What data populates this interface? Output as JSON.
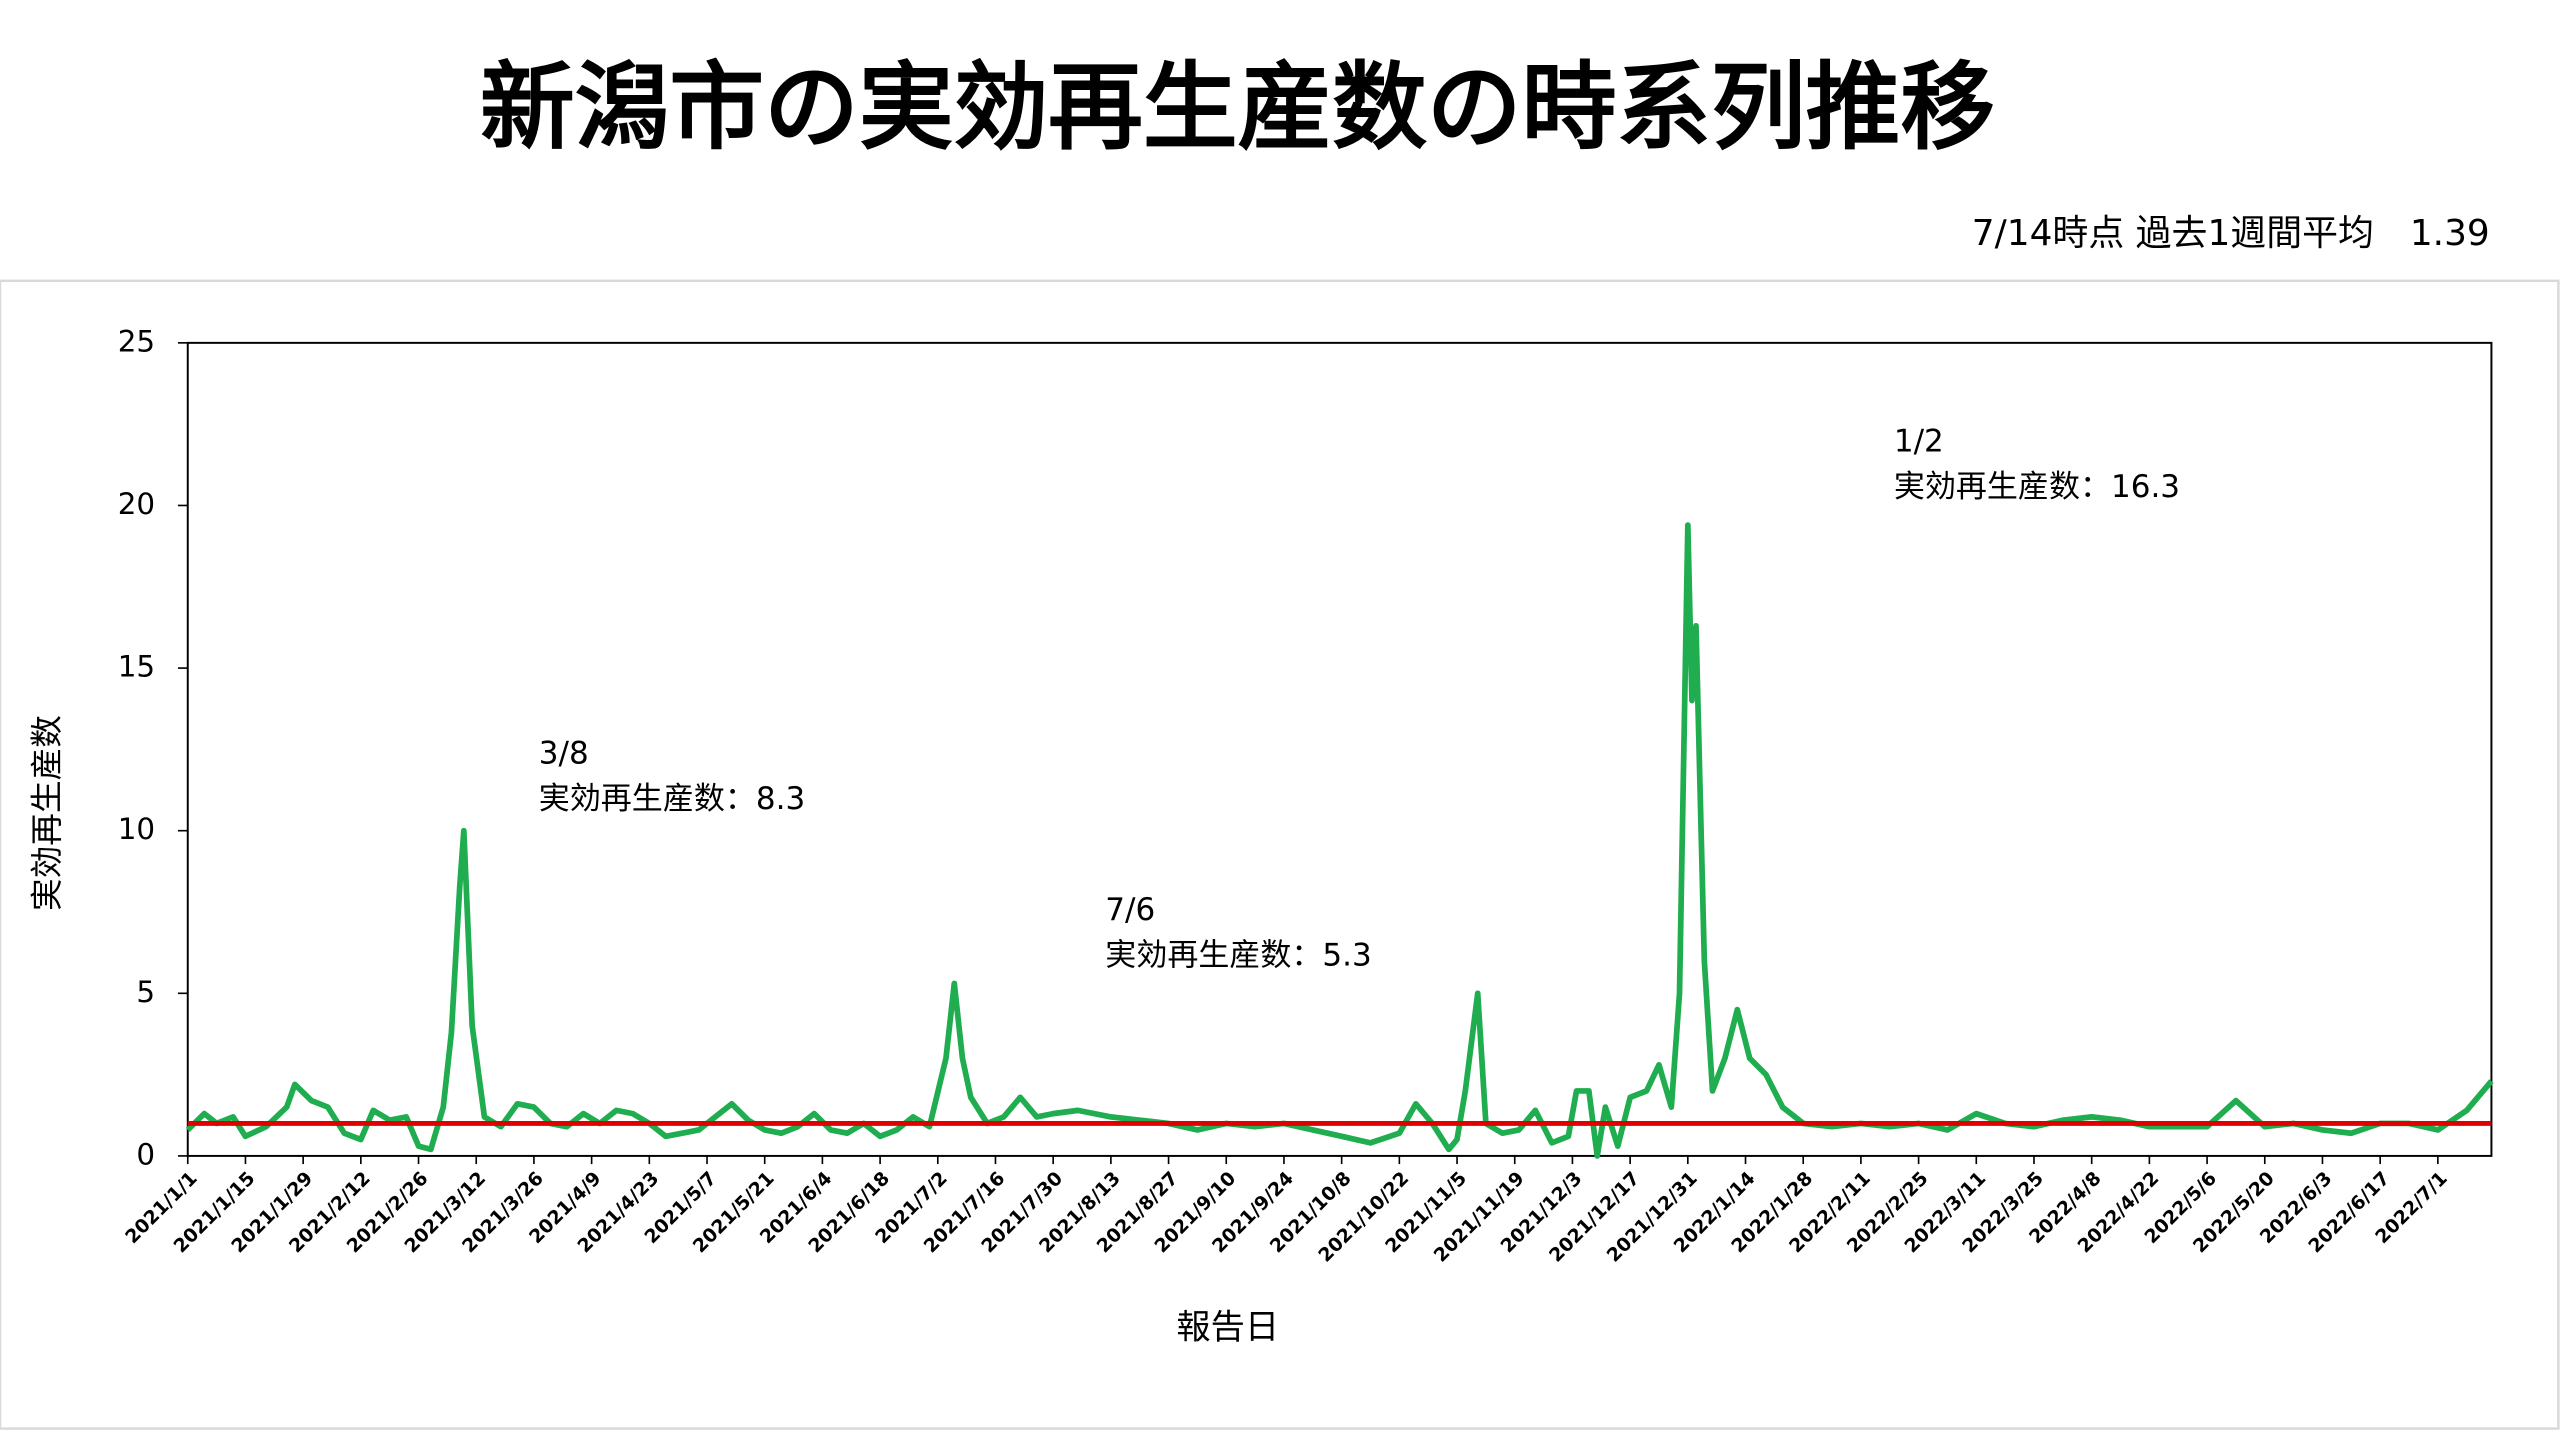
{
  "chart_data": {
    "type": "line",
    "title": "新潟市の実効再生産数の時系列推移",
    "subtitle": "7/14時点 過去1週間平均　1.39",
    "ylabel": "実効再生産数",
    "xlabel": "報告日",
    "xlim": [
      "2021/1/1",
      "2022/7/14"
    ],
    "xticks": [
      "2021/1/1",
      "2021/1/15",
      "2021/1/29",
      "2021/2/12",
      "2021/2/26",
      "2021/3/12",
      "2021/3/26",
      "2021/4/9",
      "2021/4/23",
      "2021/5/7",
      "2021/5/21",
      "2021/6/4",
      "2021/6/18",
      "2021/7/2",
      "2021/7/16",
      "2021/7/30",
      "2021/8/13",
      "2021/8/27",
      "2021/9/10",
      "2021/9/24",
      "2021/10/8",
      "2021/10/22",
      "2021/11/5",
      "2021/11/19",
      "2021/12/3",
      "2021/12/17",
      "2021/12/31",
      "2022/1/14",
      "2022/1/28",
      "2022/2/11",
      "2022/2/25",
      "2022/3/11",
      "2022/3/25",
      "2022/4/8",
      "2022/4/22",
      "2022/5/6",
      "2022/5/20",
      "2022/6/3",
      "2022/6/17",
      "2022/7/1"
    ],
    "ylim": [
      0,
      25
    ],
    "yticks": [
      0,
      5,
      10,
      15,
      20,
      25
    ],
    "hline": {
      "value": 1,
      "color": "#e00000"
    },
    "annotations": [
      [
        "3/8",
        "実効再生産数：8.3"
      ],
      [
        "7/6",
        "実効再生産数：5.3"
      ],
      [
        "1/2",
        "実効再生産数：16.3"
      ]
    ],
    "series": [
      {
        "name": "実効再生産数",
        "color": "#1fad4f",
        "x": [
          "2021/1/1",
          "2021/1/5",
          "2021/1/8",
          "2021/1/12",
          "2021/1/15",
          "2021/1/20",
          "2021/1/25",
          "2021/1/27",
          "2021/1/31",
          "2021/2/4",
          "2021/2/8",
          "2021/2/12",
          "2021/2/15",
          "2021/2/19",
          "2021/2/23",
          "2021/2/26",
          "2021/3/1",
          "2021/3/4",
          "2021/3/6",
          "2021/3/8",
          "2021/3/9",
          "2021/3/11",
          "2021/3/14",
          "2021/3/18",
          "2021/3/22",
          "2021/3/26",
          "2021/3/30",
          "2021/4/3",
          "2021/4/7",
          "2021/4/11",
          "2021/4/15",
          "2021/4/19",
          "2021/4/23",
          "2021/4/27",
          "2021/5/1",
          "2021/5/5",
          "2021/5/9",
          "2021/5/13",
          "2021/5/17",
          "2021/5/21",
          "2021/5/25",
          "2021/5/29",
          "2021/6/2",
          "2021/6/6",
          "2021/6/10",
          "2021/6/14",
          "2021/6/18",
          "2021/6/22",
          "2021/6/26",
          "2021/6/30",
          "2021/7/4",
          "2021/7/6",
          "2021/7/8",
          "2021/7/10",
          "2021/7/14",
          "2021/7/18",
          "2021/7/22",
          "2021/7/26",
          "2021/7/30",
          "2021/8/5",
          "2021/8/13",
          "2021/8/20",
          "2021/8/27",
          "2021/9/3",
          "2021/9/10",
          "2021/9/17",
          "2021/9/24",
          "2021/10/1",
          "2021/10/8",
          "2021/10/15",
          "2021/10/22",
          "2021/10/26",
          "2021/10/30",
          "2021/11/3",
          "2021/11/5",
          "2021/11/7",
          "2021/11/10",
          "2021/11/12",
          "2021/11/16",
          "2021/11/20",
          "2021/11/24",
          "2021/11/28",
          "2021/12/2",
          "2021/12/4",
          "2021/12/7",
          "2021/12/9",
          "2021/12/11",
          "2021/12/14",
          "2021/12/17",
          "2021/12/21",
          "2021/12/24",
          "2021/12/27",
          "2021/12/29",
          "2021/12/31",
          "2022/1/1",
          "2022/1/2",
          "2022/1/4",
          "2022/1/6",
          "2022/1/9",
          "2022/1/12",
          "2022/1/15",
          "2022/1/19",
          "2022/1/23",
          "2022/1/28",
          "2022/2/4",
          "2022/2/11",
          "2022/2/18",
          "2022/2/25",
          "2022/3/4",
          "2022/3/11",
          "2022/3/18",
          "2022/3/25",
          "2022/4/1",
          "2022/4/8",
          "2022/4/15",
          "2022/4/22",
          "2022/4/29",
          "2022/5/6",
          "2022/5/13",
          "2022/5/20",
          "2022/5/27",
          "2022/6/3",
          "2022/6/10",
          "2022/6/17",
          "2022/6/24",
          "2022/7/1",
          "2022/7/8",
          "2022/7/14"
        ],
        "values": [
          0.8,
          1.3,
          1.0,
          1.2,
          0.6,
          0.9,
          1.5,
          2.2,
          1.7,
          1.5,
          0.7,
          0.5,
          1.4,
          1.1,
          1.2,
          0.3,
          0.2,
          1.5,
          3.8,
          8.3,
          10.0,
          4.0,
          1.2,
          0.9,
          1.6,
          1.5,
          1.0,
          0.9,
          1.3,
          1.0,
          1.4,
          1.3,
          1.0,
          0.6,
          0.7,
          0.8,
          1.2,
          1.6,
          1.1,
          0.8,
          0.7,
          0.9,
          1.3,
          0.8,
          0.7,
          1.0,
          0.6,
          0.8,
          1.2,
          0.9,
          3.0,
          5.3,
          3.0,
          1.8,
          1.0,
          1.2,
          1.8,
          1.2,
          1.3,
          1.4,
          1.2,
          1.1,
          1.0,
          0.8,
          1.0,
          0.9,
          1.0,
          0.8,
          0.6,
          0.4,
          0.7,
          1.6,
          1.0,
          0.2,
          0.5,
          2.0,
          5.0,
          1.0,
          0.7,
          0.8,
          1.4,
          0.4,
          0.6,
          2.0,
          2.0,
          0.0,
          1.5,
          0.3,
          1.8,
          2.0,
          2.8,
          1.5,
          5.0,
          19.4,
          14.0,
          16.3,
          6.0,
          2.0,
          3.0,
          4.5,
          3.0,
          2.5,
          1.5,
          1.0,
          0.9,
          1.0,
          0.9,
          1.0,
          0.8,
          1.3,
          1.0,
          0.9,
          1.1,
          1.2,
          1.1,
          0.9,
          0.9,
          0.9,
          1.7,
          0.9,
          1.0,
          0.8,
          0.7,
          1.0,
          1.0,
          0.8,
          1.4,
          2.3
        ]
      }
    ]
  }
}
